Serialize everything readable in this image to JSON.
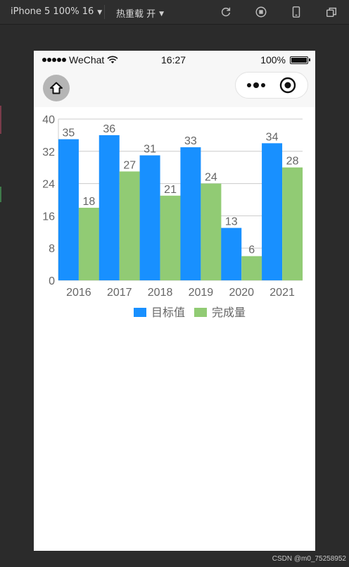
{
  "toolbar": {
    "device_label": "iPhone 5 100% 16",
    "hot_reload_label": "热重载 开",
    "icons": [
      "refresh-icon",
      "record-icon",
      "phone-icon",
      "windows-icon"
    ]
  },
  "status_bar": {
    "carrier": "WeChat",
    "time": "16:27",
    "battery_percent": "100%"
  },
  "chart_data": {
    "type": "bar",
    "categories": [
      "2016",
      "2017",
      "2018",
      "2019",
      "2020",
      "2021"
    ],
    "series": [
      {
        "name": "目标值",
        "values": [
          35,
          36,
          31,
          33,
          13,
          34
        ],
        "color": "#1890ff"
      },
      {
        "name": "完成量",
        "values": [
          18,
          27,
          21,
          24,
          6,
          28
        ],
        "color": "#91cb74"
      }
    ],
    "ylim": [
      0,
      40
    ],
    "yticks": [
      "0",
      "8",
      "16",
      "24",
      "32",
      "40"
    ],
    "grid": true,
    "legend_position": "bottom",
    "data_labels": true
  },
  "watermark": "CSDN @m0_75258952"
}
